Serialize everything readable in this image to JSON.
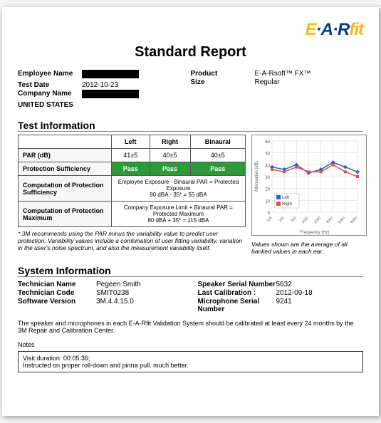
{
  "logo": {
    "part1": "E",
    "dot": "·",
    "part2": "A",
    "dot2": "·",
    "part3": "R",
    "part4": "fit"
  },
  "title": "Standard Report",
  "meta_left": {
    "employee_name_label": "Employee Name",
    "test_date_label": "Test Date",
    "test_date": "2012-10-23",
    "company_name_label": "Company Name",
    "country": "UNITED STATES"
  },
  "meta_right": {
    "product_label": "Product",
    "product": "E-A-Rsoft™ FX™",
    "size_label": "Size",
    "size": "Regular"
  },
  "test_info": {
    "heading": "Test Information",
    "cols": [
      "Left",
      "Right",
      "Binaural"
    ],
    "rows": [
      {
        "label": "PAR (dB)",
        "cells": [
          "41±5",
          "40±5",
          "40±5"
        ]
      },
      {
        "label": "Protection Sufficiency",
        "cells": [
          "Pass",
          "Pass",
          "Pass"
        ],
        "pass": true
      },
      {
        "label": "Computation of Protection Sufficiency",
        "wide": "Employee Exposure - Binaural PAR = Protected Exposure\n90 dBA - 35* = 55 dBA"
      },
      {
        "label": "Computation of Protection Maximum",
        "wide": "Company Exposure Limit + Binaural PAR = Protected Maximum\n80 dBA + 35* = 115 dBA"
      }
    ],
    "footnote": "* 3M recommends using the PAR minus the variability value to predict user protection. Variability values include a combination of user fitting variability, variation in the user's noise spectrum, and also the measurement variability itself.",
    "chart": {
      "y_label": "Attenuation (dB)",
      "x_label": "Frequency (Hz)",
      "y_min": 0,
      "y_max": 60,
      "y_step": 10,
      "x_ticks": [
        "125",
        "250",
        "500",
        "1000",
        "2000",
        "4000",
        "6300",
        "8000"
      ],
      "series": [
        {
          "name": "Left",
          "color": "#2b5fc1",
          "marker": "diamond",
          "values": [
            38,
            36,
            40,
            33,
            36,
            42,
            38,
            34
          ]
        },
        {
          "name": "Right",
          "color": "#d9534f",
          "marker": "square",
          "values": [
            36,
            34,
            38,
            34,
            34,
            40,
            34,
            30
          ]
        }
      ],
      "grid_color": "#d0d0d0",
      "bg": "#ffffff",
      "caption": "Values shown are the average of all banked values in each ear."
    }
  },
  "sys": {
    "heading": "System Information",
    "left": [
      {
        "k": "Technician Name",
        "v": "Pegeen  Smith"
      },
      {
        "k": "Technician Code",
        "v": "SMIT0238"
      },
      {
        "k": "Software Version",
        "v": "3M.4.4.15.0"
      }
    ],
    "right": [
      {
        "k": "Speaker Serial Number",
        "v": "5632"
      },
      {
        "k": "Last Calibration :",
        "v": "2012-09-18"
      },
      {
        "k": "Microphone Serial Number",
        "v": "9241"
      }
    ],
    "calib_note": "The speaker and microphones in each E-A-Rfit Validation System should be calibrated at least every 24 months by the 3M Repair and Calibration Center."
  },
  "notes": {
    "label": "Notes",
    "body": "Visit duration: 00:05:36;\nInstructed on proper roll-down and pinna pull.  much better."
  }
}
